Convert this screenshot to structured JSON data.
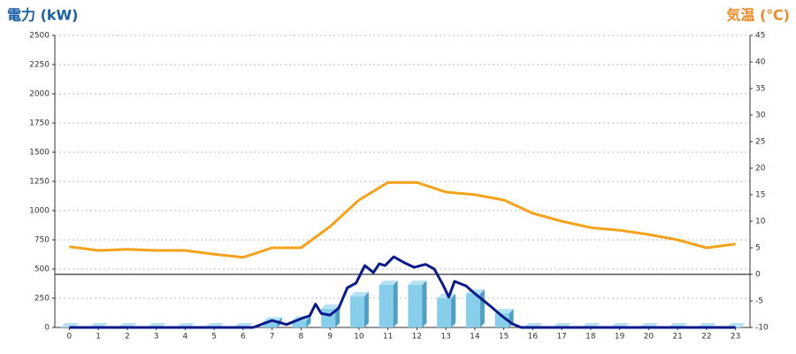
{
  "chart_data": {
    "type": "combo",
    "y_label": "電力 (kW)",
    "y2_label": "気温 (℃)",
    "xlim": [
      -0.5,
      23.5
    ],
    "xticks": [
      0,
      1,
      2,
      3,
      4,
      5,
      6,
      7,
      8,
      9,
      10,
      11,
      12,
      13,
      14,
      15,
      16,
      17,
      18,
      19,
      20,
      21,
      22,
      23
    ],
    "ylim": [
      0,
      2500
    ],
    "yticks": [
      0,
      250,
      500,
      750,
      1000,
      1250,
      1500,
      1750,
      2000,
      2250,
      2500
    ],
    "y2lim": [
      -10,
      45
    ],
    "y2ticks": [
      -10,
      -5,
      0,
      5,
      10,
      15,
      20,
      25,
      30,
      35,
      40,
      45
    ],
    "grid": true,
    "series": [
      {
        "type": "bar",
        "color": "#87ceeb",
        "x": [
          0,
          1,
          2,
          3,
          4,
          5,
          6,
          7,
          8,
          9,
          10,
          11,
          12,
          13,
          14,
          15,
          16,
          17,
          18,
          19,
          20,
          21,
          22,
          23
        ],
        "values": [
          0,
          0,
          0,
          0,
          0,
          0,
          0,
          50,
          60,
          160,
          265,
          364,
          364,
          250,
          288,
          121,
          0,
          0,
          0,
          0,
          0,
          0,
          0,
          0
        ]
      },
      {
        "type": "line",
        "color": "#0a1a8c",
        "x": [
          0,
          6,
          6.35,
          7,
          7.5,
          8,
          8.3,
          8.5,
          8.7,
          9,
          9.3,
          9.6,
          9.9,
          10.2,
          10.5,
          10.7,
          10.9,
          11.2,
          11.6,
          11.9,
          12.3,
          12.6,
          12.9,
          13.1,
          13.3,
          13.7,
          14,
          14.5,
          14.9,
          15.3,
          15.6,
          23
        ],
        "values": [
          0,
          0,
          0,
          60,
          25,
          75,
          100,
          200,
          120,
          105,
          165,
          340,
          380,
          530,
          470,
          545,
          530,
          605,
          550,
          515,
          540,
          500,
          365,
          260,
          395,
          355,
          290,
          190,
          105,
          30,
          0,
          0
        ]
      },
      {
        "type": "line",
        "axis": "y2",
        "color": "#f5a21b",
        "x": [
          0,
          1,
          2,
          3,
          4,
          5,
          6,
          7,
          8,
          9,
          10,
          11,
          12,
          13,
          14,
          15,
          16,
          17,
          18,
          19,
          20,
          21,
          22,
          23
        ],
        "values": [
          5.2,
          4.5,
          4.7,
          4.5,
          4.5,
          3.8,
          3.2,
          5,
          5,
          9,
          14,
          17.3,
          17.3,
          15.5,
          15,
          14,
          11.5,
          10,
          8.8,
          8.3,
          7.5,
          6.5,
          5,
          5.7
        ]
      }
    ]
  }
}
